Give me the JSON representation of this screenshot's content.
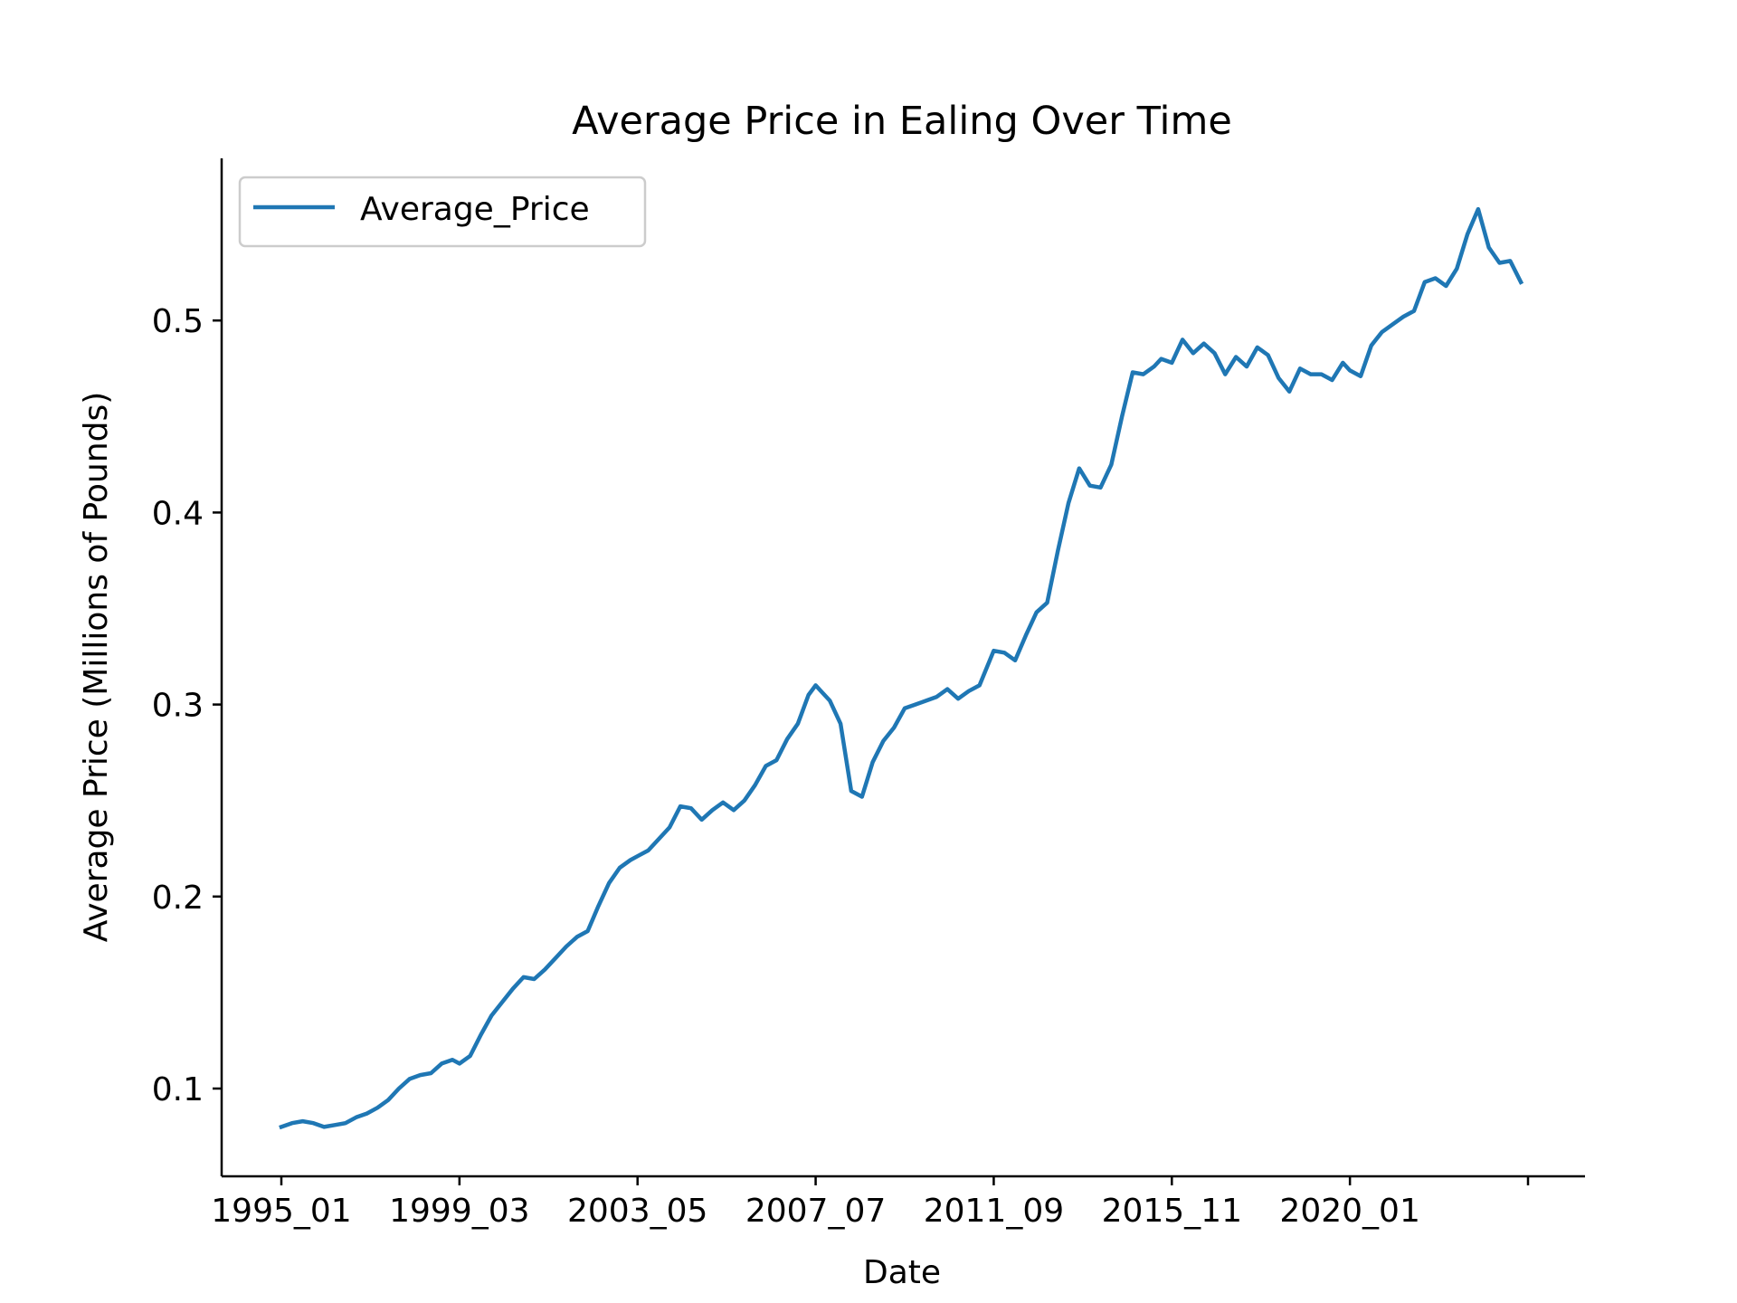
{
  "chart_data": {
    "type": "line",
    "title": "Average Price in Ealing Over Time",
    "xlabel": "Date",
    "ylabel": "Average Price (Millions of Pounds)",
    "x_tick_labels": [
      "1995_01",
      "1999_03",
      "2003_05",
      "2007_07",
      "2011_09",
      "2015_11",
      "2020_01",
      ""
    ],
    "y_ticks": [
      0.1,
      0.2,
      0.3,
      0.4,
      0.5
    ],
    "y_tick_labels": [
      "0.1",
      "0.2",
      "0.3",
      "0.4",
      "0.5"
    ],
    "ylim": [
      0.055,
      0.585
    ],
    "grid": false,
    "legend_position": "upper left",
    "colors": {
      "series": "#1f77b4",
      "axis": "#000000",
      "legend_border": "#cccccc"
    },
    "series": [
      {
        "name": "Average_Price",
        "x": [
          "1995_01",
          "1995_04",
          "1995_07",
          "1995_10",
          "1996_01",
          "1996_04",
          "1996_07",
          "1996_10",
          "1997_01",
          "1997_04",
          "1997_07",
          "1997_10",
          "1998_01",
          "1998_04",
          "1998_07",
          "1998_10",
          "1999_01",
          "1999_03",
          "1999_06",
          "1999_09",
          "1999_12",
          "2000_03",
          "2000_06",
          "2000_09",
          "2000_12",
          "2001_03",
          "2001_06",
          "2001_09",
          "2001_12",
          "2002_03",
          "2002_06",
          "2002_09",
          "2002_12",
          "2003_03",
          "2003_05",
          "2003_08",
          "2003_11",
          "2004_02",
          "2004_05",
          "2004_08",
          "2004_11",
          "2005_02",
          "2005_05",
          "2005_08",
          "2005_11",
          "2006_02",
          "2006_05",
          "2006_08",
          "2006_11",
          "2007_02",
          "2007_05",
          "2007_07",
          "2007_09",
          "2007_11",
          "2008_02",
          "2008_05",
          "2008_08",
          "2008_11",
          "2009_02",
          "2009_05",
          "2009_08",
          "2009_11",
          "2010_02",
          "2010_05",
          "2010_08",
          "2010_11",
          "2011_02",
          "2011_05",
          "2011_09",
          "2011_12",
          "2012_03",
          "2012_06",
          "2012_09",
          "2012_12",
          "2013_03",
          "2013_06",
          "2013_09",
          "2013_12",
          "2014_03",
          "2014_06",
          "2014_09",
          "2014_12",
          "2015_03",
          "2015_06",
          "2015_08",
          "2015_11",
          "2016_02",
          "2016_05",
          "2016_08",
          "2016_11",
          "2017_02",
          "2017_05",
          "2017_08",
          "2017_11",
          "2018_02",
          "2018_05",
          "2018_08",
          "2018_11",
          "2019_02",
          "2019_05",
          "2019_08",
          "2019_11",
          "2020_01",
          "2020_04",
          "2020_07",
          "2020_10",
          "2021_01",
          "2021_04",
          "2021_07",
          "2021_10",
          "2022_01",
          "2022_04",
          "2022_07",
          "2022_10",
          "2023_01",
          "2023_04",
          "2023_07",
          "2023_10",
          "2024_01"
        ],
        "values": [
          0.08,
          0.082,
          0.083,
          0.082,
          0.08,
          0.081,
          0.082,
          0.085,
          0.087,
          0.09,
          0.094,
          0.1,
          0.105,
          0.107,
          0.108,
          0.113,
          0.115,
          0.113,
          0.117,
          0.128,
          0.138,
          0.145,
          0.152,
          0.158,
          0.157,
          0.162,
          0.168,
          0.174,
          0.179,
          0.182,
          0.195,
          0.207,
          0.215,
          0.219,
          0.221,
          0.224,
          0.23,
          0.236,
          0.247,
          0.246,
          0.24,
          0.245,
          0.249,
          0.245,
          0.25,
          0.258,
          0.268,
          0.271,
          0.282,
          0.29,
          0.305,
          0.31,
          0.306,
          0.302,
          0.29,
          0.255,
          0.252,
          0.27,
          0.281,
          0.288,
          0.298,
          0.3,
          0.302,
          0.304,
          0.308,
          0.303,
          0.307,
          0.31,
          0.328,
          0.327,
          0.323,
          0.336,
          0.348,
          0.353,
          0.38,
          0.405,
          0.423,
          0.414,
          0.413,
          0.425,
          0.45,
          0.473,
          0.472,
          0.476,
          0.48,
          0.478,
          0.49,
          0.483,
          0.488,
          0.483,
          0.472,
          0.481,
          0.476,
          0.486,
          0.482,
          0.47,
          0.463,
          0.475,
          0.472,
          0.472,
          0.469,
          0.478,
          0.474,
          0.471,
          0.487,
          0.494,
          0.498,
          0.502,
          0.505,
          0.52,
          0.522,
          0.518,
          0.527,
          0.545,
          0.558,
          0.538,
          0.53,
          0.531,
          0.52
        ],
        "color": "#1f77b4"
      }
    ]
  }
}
